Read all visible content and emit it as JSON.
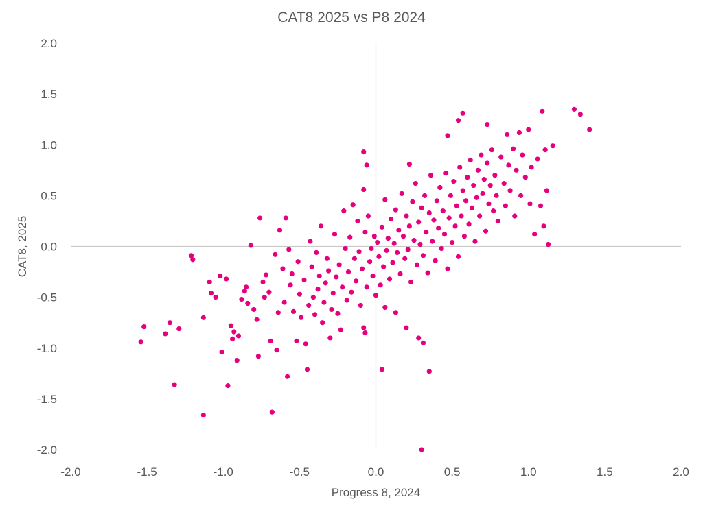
{
  "chart_data": {
    "type": "scatter",
    "title": "CAT8 2025 vs P8 2024",
    "xlabel": "Progress 8, 2024",
    "ylabel": "CAT8, 2025",
    "xlim": [
      -2.0,
      2.0
    ],
    "ylim": [
      -2.0,
      2.0
    ],
    "x_ticks": [
      "-2.0",
      "-1.5",
      "-1.0",
      "-0.5",
      "0.0",
      "0.5",
      "1.0",
      "1.5",
      "2.0"
    ],
    "y_ticks": [
      "2.0",
      "1.5",
      "1.0",
      "0.5",
      "0.0",
      "-0.5",
      "-1.0",
      "-1.5",
      "-2.0"
    ],
    "grid": false,
    "marker_color": "#E6007E",
    "axis_line_color": "#C8C8C8",
    "text_color": "#595959",
    "series": [
      {
        "points": [
          [
            -1.54,
            -0.94
          ],
          [
            -1.52,
            -0.79
          ],
          [
            -1.38,
            -0.86
          ],
          [
            -1.35,
            -0.75
          ],
          [
            -1.29,
            -0.81
          ],
          [
            -1.32,
            -1.36
          ],
          [
            -1.21,
            -0.09
          ],
          [
            -1.2,
            -0.13
          ],
          [
            -1.13,
            -0.7
          ],
          [
            -1.13,
            -1.66
          ],
          [
            -1.09,
            -0.35
          ],
          [
            -1.08,
            -0.46
          ],
          [
            -1.05,
            -0.5
          ],
          [
            -1.02,
            -0.29
          ],
          [
            -1.01,
            -1.04
          ],
          [
            -0.98,
            -0.32
          ],
          [
            -0.97,
            -1.37
          ],
          [
            -0.95,
            -0.78
          ],
          [
            -0.94,
            -0.91
          ],
          [
            -0.93,
            -0.84
          ],
          [
            -0.91,
            -1.12
          ],
          [
            -0.9,
            -0.88
          ],
          [
            -0.88,
            -0.52
          ],
          [
            -0.86,
            -0.44
          ],
          [
            -0.85,
            -0.4
          ],
          [
            -0.84,
            -0.56
          ],
          [
            -0.82,
            0.01
          ],
          [
            -0.8,
            -0.62
          ],
          [
            -0.78,
            -0.72
          ],
          [
            -0.77,
            -1.08
          ],
          [
            -0.76,
            0.28
          ],
          [
            -0.74,
            -0.35
          ],
          [
            -0.73,
            -0.5
          ],
          [
            -0.72,
            -0.28
          ],
          [
            -0.7,
            -0.45
          ],
          [
            -0.69,
            -0.93
          ],
          [
            -0.68,
            -1.63
          ],
          [
            -0.66,
            -0.08
          ],
          [
            -0.65,
            -1.02
          ],
          [
            -0.64,
            -0.65
          ],
          [
            -0.63,
            0.16
          ],
          [
            -0.61,
            -0.22
          ],
          [
            -0.6,
            -0.55
          ],
          [
            -0.59,
            0.28
          ],
          [
            -0.58,
            -1.28
          ],
          [
            -0.57,
            -0.03
          ],
          [
            -0.56,
            -0.38
          ],
          [
            -0.55,
            -0.27
          ],
          [
            -0.54,
            -0.64
          ],
          [
            -0.52,
            -0.93
          ],
          [
            -0.51,
            -0.15
          ],
          [
            -0.5,
            -0.47
          ],
          [
            -0.49,
            -0.7
          ],
          [
            -0.47,
            -0.33
          ],
          [
            -0.46,
            -0.96
          ],
          [
            -0.45,
            -1.21
          ],
          [
            -0.44,
            -0.58
          ],
          [
            -0.43,
            0.05
          ],
          [
            -0.42,
            -0.2
          ],
          [
            -0.41,
            -0.5
          ],
          [
            -0.4,
            -0.67
          ],
          [
            -0.39,
            -0.06
          ],
          [
            -0.38,
            -0.42
          ],
          [
            -0.37,
            -0.29
          ],
          [
            -0.36,
            0.2
          ],
          [
            -0.35,
            -0.75
          ],
          [
            -0.34,
            -0.55
          ],
          [
            -0.33,
            -0.36
          ],
          [
            -0.32,
            -0.12
          ],
          [
            -0.31,
            -0.24
          ],
          [
            -0.3,
            -0.9
          ],
          [
            -0.29,
            -0.62
          ],
          [
            -0.28,
            -0.46
          ],
          [
            -0.27,
            0.12
          ],
          [
            -0.26,
            -0.3
          ],
          [
            -0.25,
            -0.66
          ],
          [
            -0.24,
            -0.18
          ],
          [
            -0.23,
            -0.82
          ],
          [
            -0.22,
            -0.4
          ],
          [
            -0.21,
            0.35
          ],
          [
            -0.2,
            -0.02
          ],
          [
            -0.19,
            -0.53
          ],
          [
            -0.18,
            -0.25
          ],
          [
            -0.17,
            0.09
          ],
          [
            -0.16,
            -0.45
          ],
          [
            -0.15,
            0.41
          ],
          [
            -0.14,
            -0.12
          ],
          [
            -0.13,
            -0.34
          ],
          [
            -0.12,
            0.25
          ],
          [
            -0.11,
            -0.05
          ],
          [
            -0.1,
            -0.58
          ],
          [
            -0.09,
            -0.22
          ],
          [
            -0.08,
            0.56
          ],
          [
            -0.07,
            0.14
          ],
          [
            -0.06,
            -0.4
          ],
          [
            -0.05,
            0.3
          ],
          [
            -0.04,
            -0.15
          ],
          [
            -0.03,
            -0.02
          ],
          [
            -0.02,
            -0.29
          ],
          [
            -0.01,
            0.1
          ],
          [
            0.0,
            -0.48
          ],
          [
            0.01,
            0.04
          ],
          [
            0.02,
            -0.1
          ],
          [
            0.03,
            -0.38
          ],
          [
            0.04,
            0.19
          ],
          [
            0.05,
            -0.2
          ],
          [
            0.06,
            0.46
          ],
          [
            0.07,
            -0.04
          ],
          [
            0.08,
            0.08
          ],
          [
            0.09,
            -0.32
          ],
          [
            0.1,
            0.27
          ],
          [
            0.11,
            -0.16
          ],
          [
            0.12,
            0.03
          ],
          [
            0.13,
            0.36
          ],
          [
            0.14,
            -0.06
          ],
          [
            0.15,
            0.16
          ],
          [
            0.16,
            -0.27
          ],
          [
            0.17,
            0.52
          ],
          [
            0.18,
            0.1
          ],
          [
            0.19,
            -0.12
          ],
          [
            0.2,
            0.3
          ],
          [
            0.21,
            -0.03
          ],
          [
            0.22,
            0.2
          ],
          [
            0.23,
            -0.35
          ],
          [
            0.24,
            0.44
          ],
          [
            0.25,
            0.06
          ],
          [
            0.26,
            0.62
          ],
          [
            0.27,
            -0.18
          ],
          [
            0.28,
            0.24
          ],
          [
            0.29,
            0.02
          ],
          [
            0.3,
            0.38
          ],
          [
            0.31,
            -0.09
          ],
          [
            0.32,
            0.5
          ],
          [
            0.33,
            0.14
          ],
          [
            0.34,
            -0.26
          ],
          [
            0.35,
            0.33
          ],
          [
            0.36,
            0.7
          ],
          [
            0.37,
            0.05
          ],
          [
            0.38,
            0.26
          ],
          [
            0.39,
            -0.14
          ],
          [
            0.4,
            0.45
          ],
          [
            0.41,
            0.18
          ],
          [
            0.42,
            0.58
          ],
          [
            0.43,
            -0.02
          ],
          [
            0.44,
            0.35
          ],
          [
            0.45,
            0.12
          ],
          [
            0.46,
            0.72
          ],
          [
            0.47,
            -0.22
          ],
          [
            0.48,
            0.28
          ],
          [
            0.49,
            0.5
          ],
          [
            0.5,
            0.04
          ],
          [
            0.51,
            0.64
          ],
          [
            0.52,
            0.2
          ],
          [
            0.53,
            0.4
          ],
          [
            0.54,
            -0.1
          ],
          [
            0.55,
            0.78
          ],
          [
            0.56,
            0.3
          ],
          [
            0.57,
            0.55
          ],
          [
            0.58,
            0.1
          ],
          [
            0.59,
            0.45
          ],
          [
            0.6,
            0.68
          ],
          [
            0.61,
            0.22
          ],
          [
            0.62,
            0.85
          ],
          [
            0.63,
            0.38
          ],
          [
            0.64,
            0.6
          ],
          [
            0.65,
            0.05
          ],
          [
            0.66,
            0.48
          ],
          [
            0.67,
            0.75
          ],
          [
            0.68,
            0.3
          ],
          [
            0.69,
            0.9
          ],
          [
            0.7,
            0.52
          ],
          [
            0.71,
            0.66
          ],
          [
            0.72,
            0.15
          ],
          [
            0.73,
            0.82
          ],
          [
            0.74,
            0.42
          ],
          [
            0.75,
            0.6
          ],
          [
            0.76,
            0.95
          ],
          [
            0.77,
            0.35
          ],
          [
            0.78,
            0.7
          ],
          [
            0.79,
            0.5
          ],
          [
            0.8,
            0.25
          ],
          [
            0.82,
            0.88
          ],
          [
            0.84,
            0.62
          ],
          [
            0.85,
            0.4
          ],
          [
            0.86,
            1.1
          ],
          [
            0.87,
            0.8
          ],
          [
            0.88,
            0.55
          ],
          [
            0.9,
            0.96
          ],
          [
            0.91,
            0.3
          ],
          [
            0.92,
            0.75
          ],
          [
            0.94,
            1.12
          ],
          [
            0.95,
            0.5
          ],
          [
            0.96,
            0.9
          ],
          [
            0.98,
            0.68
          ],
          [
            1.0,
            1.15
          ],
          [
            1.01,
            0.42
          ],
          [
            1.02,
            0.78
          ],
          [
            1.04,
            0.12
          ],
          [
            1.06,
            0.86
          ],
          [
            1.08,
            0.4
          ],
          [
            1.09,
            1.33
          ],
          [
            1.1,
            0.2
          ],
          [
            1.11,
            0.95
          ],
          [
            1.12,
            0.55
          ],
          [
            1.13,
            0.02
          ],
          [
            1.16,
            0.99
          ],
          [
            1.3,
            1.35
          ],
          [
            1.34,
            1.3
          ],
          [
            1.4,
            1.15
          ],
          [
            0.57,
            1.31
          ],
          [
            0.54,
            1.24
          ],
          [
            0.47,
            1.09
          ],
          [
            0.73,
            1.2
          ],
          [
            -0.08,
            0.93
          ],
          [
            -0.06,
            0.8
          ],
          [
            0.22,
            0.81
          ],
          [
            0.04,
            -1.21
          ],
          [
            0.3,
            -2.0
          ],
          [
            0.35,
            -1.23
          ],
          [
            -0.08,
            -0.8
          ],
          [
            -0.07,
            -0.85
          ],
          [
            0.2,
            -0.8
          ],
          [
            0.13,
            -0.65
          ],
          [
            0.06,
            -0.6
          ],
          [
            0.28,
            -0.9
          ],
          [
            0.31,
            -0.95
          ]
        ]
      }
    ]
  }
}
